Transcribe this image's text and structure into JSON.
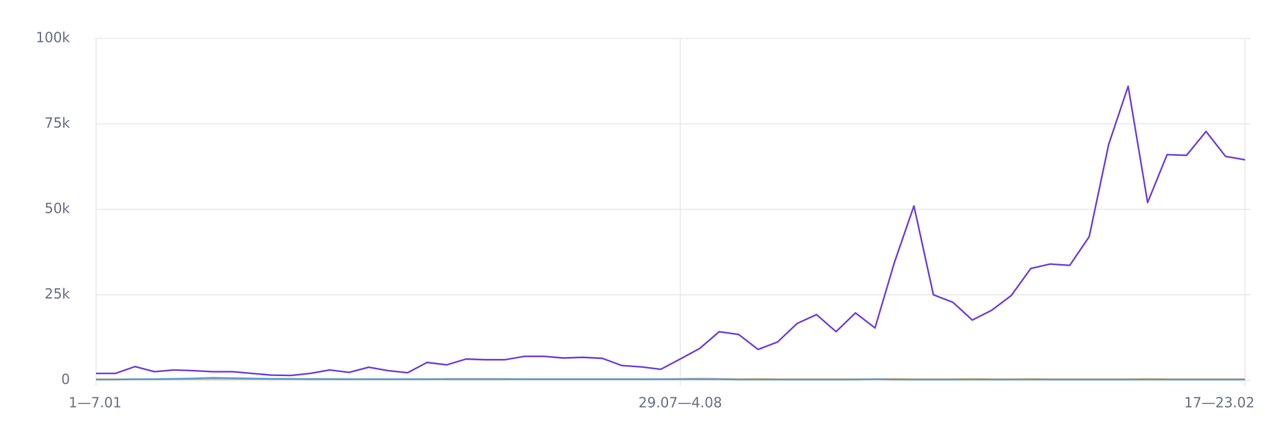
{
  "chart_data": {
    "type": "line",
    "categories": [
      "1—7.01",
      null,
      null,
      null,
      null,
      null,
      null,
      null,
      null,
      null,
      null,
      null,
      null,
      null,
      null,
      null,
      null,
      null,
      null,
      null,
      null,
      null,
      null,
      null,
      null,
      null,
      null,
      null,
      null,
      null,
      "29.07—4.08",
      null,
      null,
      null,
      null,
      null,
      null,
      null,
      null,
      null,
      null,
      null,
      null,
      null,
      null,
      null,
      null,
      null,
      null,
      null,
      null,
      null,
      null,
      null,
      null,
      null,
      null,
      null,
      null,
      "17—23.02"
    ],
    "series": [
      {
        "color": "#7042e0",
        "values": [
          2000,
          2000,
          4000,
          2500,
          3000,
          2800,
          2500,
          2500,
          2000,
          1500,
          1400,
          2000,
          3000,
          2300,
          3800,
          2800,
          2200,
          5200,
          4500,
          6200,
          6000,
          6000,
          7000,
          7000,
          6500,
          6700,
          6400,
          4300,
          3900,
          3200,
          6200,
          9300,
          14200,
          13400,
          9000,
          11200,
          16600,
          19200,
          14200,
          19700,
          15300,
          34500,
          51000,
          25000,
          22800,
          17600,
          20500,
          24800,
          32700,
          34000,
          33600,
          42000,
          69000,
          86000,
          52000,
          66000,
          65800,
          72800,
          65500,
          64500
        ]
      },
      {
        "color": "#5b9bd5",
        "values": [
          200,
          200,
          300,
          300,
          400,
          500,
          700,
          600,
          500,
          400,
          400,
          300,
          300,
          300,
          300,
          300,
          300,
          300,
          300,
          300,
          300,
          300,
          300,
          300,
          300,
          300,
          300,
          300,
          300,
          300,
          300,
          300,
          300,
          200,
          200,
          200,
          200,
          200,
          200,
          200,
          300,
          200,
          200,
          200,
          200,
          200,
          200,
          200,
          200,
          200,
          200,
          200,
          200,
          200,
          200,
          200,
          200,
          200,
          200,
          200
        ]
      },
      {
        "color": "#f0b75a",
        "values": [
          300,
          300,
          300,
          300,
          300,
          300,
          300,
          300,
          300,
          300,
          300,
          400,
          400,
          300,
          300,
          300,
          300,
          300,
          400,
          400,
          400,
          400,
          300,
          300,
          300,
          300,
          300,
          300,
          300,
          300,
          400,
          500,
          400,
          300,
          400,
          300,
          300,
          300,
          300,
          300,
          300,
          400,
          300,
          300,
          300,
          400,
          300,
          300,
          400,
          300,
          300,
          300,
          300,
          300,
          400,
          300,
          300,
          300,
          300,
          300
        ]
      }
    ],
    "ylim": [
      0,
      100000
    ],
    "yticks": [
      0,
      {
        "value": 25000,
        "label": "25k"
      },
      {
        "value": 50000,
        "label": "50k"
      },
      {
        "value": 75000,
        "label": "75k"
      },
      {
        "value": 100000,
        "label": "100k"
      }
    ],
    "grid": true
  }
}
